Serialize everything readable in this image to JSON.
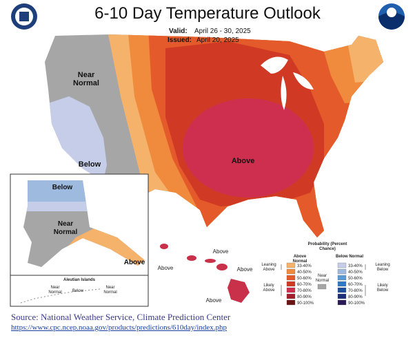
{
  "header": {
    "title": "6-10 Day Temperature Outlook",
    "valid_label": "Valid:",
    "valid": "April 26 - 30, 2025",
    "issued_label": "Issued:",
    "issued": "April 20, 2025"
  },
  "conus_labels": [
    "Near Normal",
    "Below",
    "Above"
  ],
  "alaska_labels": [
    "Below",
    "Near Normal",
    "Above"
  ],
  "aleutian": {
    "title": "Aleutian Islands",
    "labels": [
      "Near Normal",
      "Below",
      "Near Normal"
    ]
  },
  "hawaii_labels": [
    "Above",
    "Above",
    "Above",
    "Above"
  ],
  "legend": {
    "title": "Probability (Percent Chance)",
    "above_header": "Above Normal",
    "below_header": "Below Normal",
    "leaning_above": "Leaning Above",
    "likely_above": "Likely Above",
    "near_normal": "Near Normal",
    "leaning_below": "Leaning Below",
    "likely_below": "Likely Below",
    "above_ranges": [
      "33-40%",
      "40-50%",
      "50-60%",
      "60-70%",
      "70-80%",
      "80-90%",
      "90-100%"
    ],
    "below_ranges": [
      "33-40%",
      "40-50%",
      "50-60%",
      "60-70%",
      "70-80%",
      "80-90%",
      "90-100%"
    ],
    "above_colors": [
      "#f5b26b",
      "#f08a3c",
      "#e45a2a",
      "#d03a25",
      "#cf2f4f",
      "#a31f2d",
      "#6b1414"
    ],
    "below_colors": [
      "#c5cde8",
      "#9ebbdf",
      "#5b9bd5",
      "#2f78c4",
      "#1f4e9c",
      "#1c2f78",
      "#2a1a55"
    ]
  },
  "source": {
    "text": "Source: National Weather Service, Climate Prediction Center",
    "url": "https://www.cpc.ncep.noaa.gov/products/predictions/610day/index.php"
  }
}
